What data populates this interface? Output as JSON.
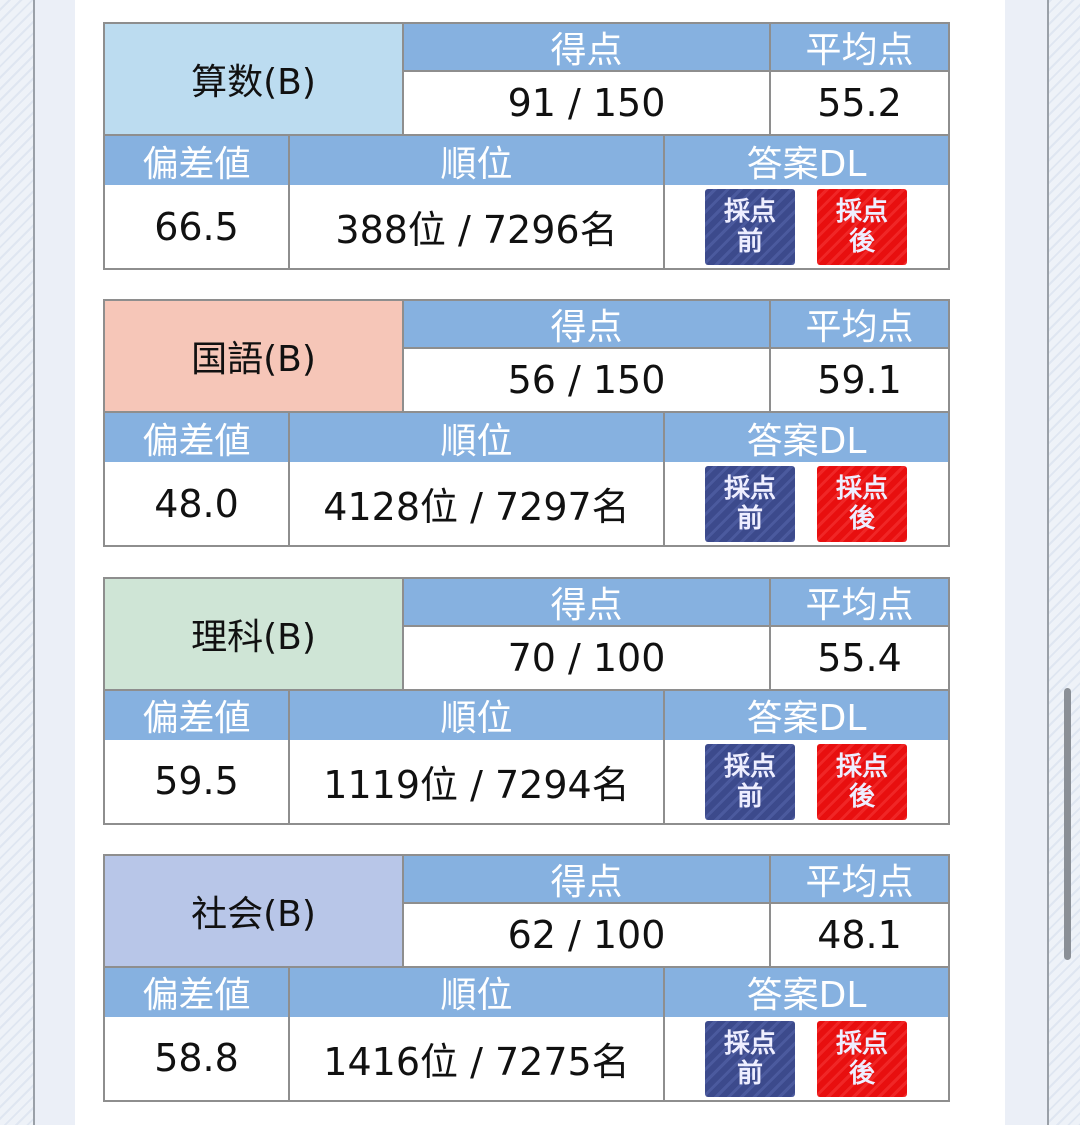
{
  "headers": {
    "score": "得点",
    "average": "平均点",
    "deviation": "偏差値",
    "rank": "順位",
    "answer_dl": "答案DL"
  },
  "buttons": {
    "before": "採点\n前",
    "after": "採点\n後"
  },
  "colors": {
    "header": "#86b1e0",
    "before_button": "#3c4a8c",
    "after_button": "#e80f0f"
  },
  "subjects": [
    {
      "name": "算数(B)",
      "color": "#bcdcf0",
      "score": "91 / 150",
      "average": "55.2",
      "deviation": "66.5",
      "rank": "388位 / 7296名"
    },
    {
      "name": "国語(B)",
      "color": "#f6c6b8",
      "score": "56 / 150",
      "average": "59.1",
      "deviation": "48.0",
      "rank": "4128位 / 7297名"
    },
    {
      "name": "理科(B)",
      "color": "#cfe5d6",
      "score": "70 / 100",
      "average": "55.4",
      "deviation": "59.5",
      "rank": "1119位 / 7294名"
    },
    {
      "name": "社会(B)",
      "color": "#b8c6e8",
      "score": "62 / 100",
      "average": "48.1",
      "deviation": "58.8",
      "rank": "1416位 / 7275名"
    }
  ]
}
